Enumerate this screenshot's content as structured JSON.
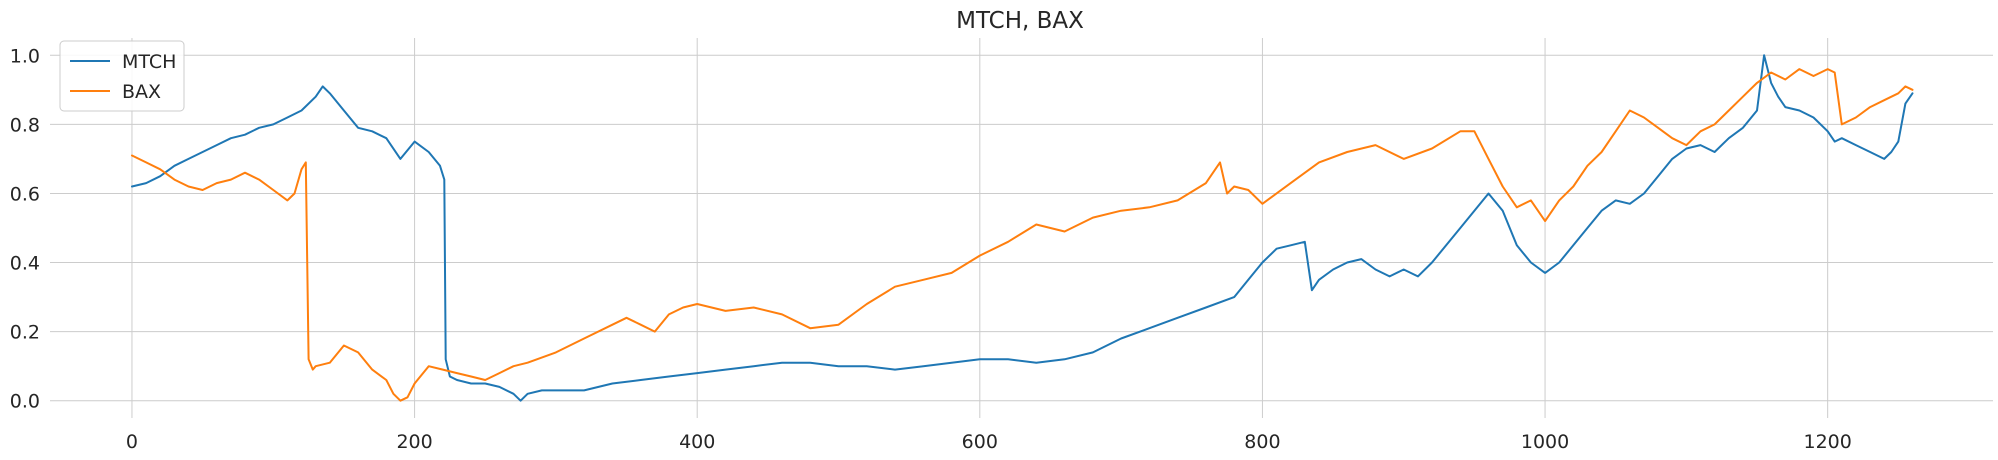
{
  "chart_data": {
    "type": "line",
    "title": "MTCH, BAX",
    "xlabel": "",
    "ylabel": "",
    "xlim": [
      -58,
      1317
    ],
    "ylim": [
      -0.05,
      1.05
    ],
    "xticks": [
      0,
      200,
      400,
      600,
      800,
      1000,
      1200
    ],
    "yticks": [
      0.0,
      0.2,
      0.4,
      0.6,
      0.8,
      1.0
    ],
    "xtick_labels": [
      "0",
      "200",
      "400",
      "600",
      "800",
      "1000",
      "1200"
    ],
    "ytick_labels": [
      "0.0",
      "0.2",
      "0.4",
      "0.6",
      "0.8",
      "1.0"
    ],
    "grid": true,
    "legend_position": "upper-left",
    "colors": {
      "MTCH": "#1f77b4",
      "BAX": "#ff7f0e",
      "grid": "#cccccc",
      "text": "#262626"
    },
    "series": [
      {
        "name": "MTCH",
        "x": [
          0,
          10,
          20,
          30,
          40,
          50,
          60,
          70,
          80,
          90,
          100,
          110,
          120,
          130,
          135,
          140,
          150,
          160,
          170,
          180,
          190,
          200,
          210,
          218,
          221,
          222,
          225,
          230,
          240,
          250,
          260,
          270,
          275,
          280,
          290,
          300,
          320,
          340,
          360,
          380,
          400,
          420,
          440,
          460,
          480,
          500,
          520,
          540,
          560,
          580,
          600,
          620,
          640,
          660,
          680,
          700,
          720,
          740,
          760,
          780,
          790,
          800,
          810,
          820,
          830,
          835,
          840,
          850,
          860,
          870,
          880,
          890,
          900,
          910,
          920,
          940,
          950,
          960,
          970,
          980,
          990,
          1000,
          1010,
          1020,
          1030,
          1040,
          1050,
          1060,
          1070,
          1080,
          1090,
          1100,
          1110,
          1120,
          1130,
          1140,
          1150,
          1155,
          1160,
          1165,
          1170,
          1180,
          1190,
          1200,
          1205,
          1210,
          1220,
          1230,
          1240,
          1245,
          1250,
          1255,
          1260
        ],
        "values": [
          0.62,
          0.63,
          0.65,
          0.68,
          0.7,
          0.72,
          0.74,
          0.76,
          0.77,
          0.79,
          0.8,
          0.82,
          0.84,
          0.88,
          0.91,
          0.89,
          0.84,
          0.79,
          0.78,
          0.76,
          0.7,
          0.75,
          0.72,
          0.68,
          0.64,
          0.12,
          0.07,
          0.06,
          0.05,
          0.05,
          0.04,
          0.02,
          0.0,
          0.02,
          0.03,
          0.03,
          0.03,
          0.05,
          0.06,
          0.07,
          0.08,
          0.09,
          0.1,
          0.11,
          0.11,
          0.1,
          0.1,
          0.09,
          0.1,
          0.11,
          0.12,
          0.12,
          0.11,
          0.12,
          0.14,
          0.18,
          0.21,
          0.24,
          0.27,
          0.3,
          0.35,
          0.4,
          0.44,
          0.45,
          0.46,
          0.32,
          0.35,
          0.38,
          0.4,
          0.41,
          0.38,
          0.36,
          0.38,
          0.36,
          0.4,
          0.5,
          0.55,
          0.6,
          0.55,
          0.45,
          0.4,
          0.37,
          0.4,
          0.45,
          0.5,
          0.55,
          0.58,
          0.57,
          0.6,
          0.65,
          0.7,
          0.73,
          0.74,
          0.72,
          0.76,
          0.79,
          0.84,
          1.0,
          0.92,
          0.88,
          0.85,
          0.84,
          0.82,
          0.78,
          0.75,
          0.76,
          0.74,
          0.72,
          0.7,
          0.72,
          0.75,
          0.86,
          0.89
        ]
      },
      {
        "name": "BAX",
        "x": [
          0,
          10,
          20,
          30,
          40,
          50,
          60,
          70,
          80,
          90,
          100,
          110,
          115,
          120,
          123,
          125,
          128,
          130,
          140,
          150,
          160,
          170,
          180,
          185,
          190,
          195,
          200,
          210,
          220,
          230,
          240,
          250,
          260,
          270,
          280,
          300,
          320,
          340,
          350,
          360,
          370,
          380,
          390,
          400,
          420,
          440,
          460,
          480,
          500,
          520,
          540,
          560,
          580,
          600,
          620,
          640,
          660,
          680,
          700,
          720,
          740,
          760,
          770,
          775,
          780,
          790,
          800,
          820,
          840,
          860,
          880,
          900,
          920,
          940,
          950,
          960,
          970,
          980,
          990,
          1000,
          1010,
          1020,
          1030,
          1040,
          1050,
          1060,
          1070,
          1080,
          1090,
          1100,
          1110,
          1120,
          1130,
          1140,
          1150,
          1160,
          1170,
          1180,
          1190,
          1200,
          1205,
          1210,
          1220,
          1230,
          1240,
          1250,
          1255,
          1260
        ],
        "values": [
          0.71,
          0.69,
          0.67,
          0.64,
          0.62,
          0.61,
          0.63,
          0.64,
          0.66,
          0.64,
          0.61,
          0.58,
          0.6,
          0.67,
          0.69,
          0.12,
          0.09,
          0.1,
          0.11,
          0.16,
          0.14,
          0.09,
          0.06,
          0.02,
          0.0,
          0.01,
          0.05,
          0.1,
          0.09,
          0.08,
          0.07,
          0.06,
          0.08,
          0.1,
          0.11,
          0.14,
          0.18,
          0.22,
          0.24,
          0.22,
          0.2,
          0.25,
          0.27,
          0.28,
          0.26,
          0.27,
          0.25,
          0.21,
          0.22,
          0.28,
          0.33,
          0.35,
          0.37,
          0.42,
          0.46,
          0.51,
          0.49,
          0.53,
          0.55,
          0.56,
          0.58,
          0.63,
          0.69,
          0.6,
          0.62,
          0.61,
          0.57,
          0.63,
          0.69,
          0.72,
          0.74,
          0.7,
          0.73,
          0.78,
          0.78,
          0.7,
          0.62,
          0.56,
          0.58,
          0.52,
          0.58,
          0.62,
          0.68,
          0.72,
          0.78,
          0.84,
          0.82,
          0.79,
          0.76,
          0.74,
          0.78,
          0.8,
          0.84,
          0.88,
          0.92,
          0.95,
          0.93,
          0.96,
          0.94,
          0.96,
          0.95,
          0.8,
          0.82,
          0.85,
          0.87,
          0.89,
          0.91,
          0.9
        ]
      }
    ]
  }
}
